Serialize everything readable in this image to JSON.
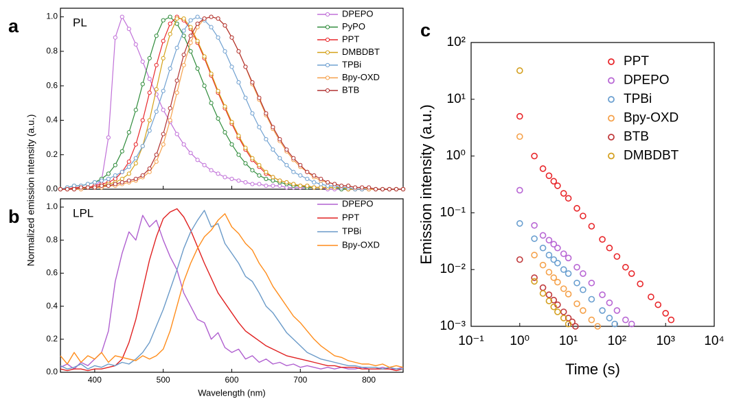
{
  "chart_data": [
    {
      "type": "line",
      "panel_label": "a",
      "annotation": "PL",
      "ylabel": "Normalized emission intensity (a.u.)",
      "markers": true,
      "legend": "upper right",
      "xlim": [
        350,
        850
      ],
      "xticks": [
        400,
        500,
        600,
        700,
        800
      ],
      "ylim": [
        0,
        1.05
      ],
      "yticks": [
        {
          "value": 0,
          "label": "0.0"
        },
        0.2,
        0.4,
        0.6,
        0.8,
        {
          "value": 1,
          "label": "1.0"
        }
      ],
      "x": [
        350,
        360,
        370,
        380,
        390,
        400,
        410,
        420,
        430,
        440,
        450,
        460,
        470,
        480,
        490,
        500,
        510,
        520,
        530,
        540,
        550,
        560,
        570,
        580,
        590,
        600,
        610,
        620,
        630,
        640,
        650,
        660,
        670,
        680,
        690,
        700,
        710,
        720,
        730,
        740,
        750,
        760,
        770,
        780,
        790,
        800,
        810,
        820,
        830,
        840,
        850
      ],
      "series": [
        {
          "name": "DPEPO",
          "color": "#c070d8",
          "values": [
            0,
            0,
            0,
            0,
            0.01,
            0.02,
            0.05,
            0.3,
            0.88,
            1.0,
            0.93,
            0.84,
            0.74,
            0.64,
            0.55,
            0.46,
            0.39,
            0.32,
            0.26,
            0.21,
            0.17,
            0.14,
            0.11,
            0.09,
            0.07,
            0.06,
            0.05,
            0.04,
            0.03,
            0.03,
            0.02,
            0.02,
            0.02,
            0.01,
            0.01,
            0.01,
            0.01,
            0.01,
            0.01,
            0,
            0,
            0,
            0,
            0,
            0,
            0,
            0,
            0,
            0,
            0,
            0
          ]
        },
        {
          "name": "PyPO",
          "color": "#2e8b3a",
          "values": [
            0,
            0.01,
            0.02,
            0.02,
            0.03,
            0.04,
            0.06,
            0.09,
            0.14,
            0.22,
            0.33,
            0.46,
            0.61,
            0.76,
            0.89,
            0.98,
            1.0,
            0.96,
            0.89,
            0.8,
            0.7,
            0.6,
            0.5,
            0.41,
            0.33,
            0.26,
            0.2,
            0.15,
            0.11,
            0.08,
            0.06,
            0.05,
            0.04,
            0.03,
            0.02,
            0.02,
            0.01,
            0.01,
            0.01,
            0.01,
            0.01,
            0,
            0,
            0,
            0,
            0,
            0,
            0,
            0,
            0,
            0
          ]
        },
        {
          "name": "PPT",
          "color": "#e8262a",
          "values": [
            0,
            0,
            0.01,
            0.01,
            0.01,
            0.02,
            0.03,
            0.04,
            0.06,
            0.1,
            0.16,
            0.26,
            0.4,
            0.56,
            0.72,
            0.86,
            0.96,
            1.0,
            0.98,
            0.93,
            0.85,
            0.76,
            0.66,
            0.56,
            0.47,
            0.38,
            0.3,
            0.23,
            0.17,
            0.13,
            0.09,
            0.07,
            0.05,
            0.04,
            0.03,
            0.02,
            0.02,
            0.01,
            0.01,
            0.01,
            0.01,
            0.01,
            0,
            0,
            0,
            0,
            0,
            0,
            0,
            0,
            0
          ]
        },
        {
          "name": "DMBDBT",
          "color": "#d4a017",
          "values": [
            0,
            0,
            0,
            0.01,
            0.01,
            0.01,
            0.02,
            0.03,
            0.04,
            0.06,
            0.09,
            0.15,
            0.25,
            0.4,
            0.58,
            0.76,
            0.9,
            0.99,
            0.99,
            0.94,
            0.86,
            0.77,
            0.67,
            0.57,
            0.48,
            0.39,
            0.31,
            0.24,
            0.18,
            0.14,
            0.1,
            0.07,
            0.05,
            0.04,
            0.03,
            0.02,
            0.02,
            0.01,
            0.01,
            0.01,
            0.01,
            0.01,
            0,
            0,
            0,
            0,
            0,
            0,
            0,
            0,
            0
          ]
        },
        {
          "name": "TPBi",
          "color": "#6fa0d0",
          "values": [
            0,
            0.01,
            0.02,
            0.02,
            0.03,
            0.04,
            0.05,
            0.06,
            0.08,
            0.1,
            0.13,
            0.18,
            0.25,
            0.34,
            0.45,
            0.57,
            0.7,
            0.82,
            0.92,
            0.98,
            1.0,
            0.98,
            0.94,
            0.88,
            0.8,
            0.71,
            0.62,
            0.53,
            0.44,
            0.36,
            0.29,
            0.23,
            0.18,
            0.14,
            0.1,
            0.08,
            0.06,
            0.04,
            0.03,
            0.02,
            0.02,
            0.01,
            0.01,
            0,
            0,
            0,
            0,
            0,
            0,
            0,
            0
          ]
        },
        {
          "name": "Bpy-OXD",
          "color": "#f5a04a",
          "values": [
            0,
            0,
            0,
            0,
            0.01,
            0.01,
            0.01,
            0.02,
            0.02,
            0.03,
            0.04,
            0.05,
            0.07,
            0.1,
            0.16,
            0.26,
            0.4,
            0.56,
            0.72,
            0.85,
            0.94,
            0.99,
            1.0,
            0.99,
            0.95,
            0.88,
            0.8,
            0.71,
            0.61,
            0.52,
            0.43,
            0.35,
            0.28,
            0.22,
            0.17,
            0.13,
            0.1,
            0.07,
            0.05,
            0.04,
            0.03,
            0.02,
            0.02,
            0.01,
            0.01,
            0,
            0,
            0,
            0,
            0,
            0
          ]
        },
        {
          "name": "BTB",
          "color": "#b03030",
          "values": [
            0,
            0,
            0,
            0.01,
            0.01,
            0.01,
            0.02,
            0.02,
            0.03,
            0.04,
            0.05,
            0.06,
            0.08,
            0.12,
            0.2,
            0.32,
            0.47,
            0.63,
            0.78,
            0.89,
            0.96,
            0.99,
            1.0,
            0.99,
            0.95,
            0.88,
            0.8,
            0.71,
            0.62,
            0.53,
            0.44,
            0.36,
            0.29,
            0.23,
            0.18,
            0.14,
            0.1,
            0.08,
            0.06,
            0.04,
            0.03,
            0.02,
            0.02,
            0.01,
            0.01,
            0.01,
            0,
            0,
            0,
            0,
            0
          ]
        }
      ]
    },
    {
      "type": "line",
      "panel_label": "b",
      "annotation": "LPL",
      "xlabel": "Wavelength (nm)",
      "markers": false,
      "legend": "upper right",
      "xlim": [
        350,
        850
      ],
      "xticks": [
        400,
        500,
        600,
        700,
        800
      ],
      "ylim": [
        0,
        1.05
      ],
      "yticks": [
        {
          "value": 0,
          "label": "0.0"
        },
        0.2,
        0.4,
        0.6,
        0.8,
        {
          "value": 1,
          "label": "1.0"
        }
      ],
      "x": [
        350,
        360,
        370,
        380,
        390,
        400,
        410,
        420,
        430,
        440,
        450,
        460,
        470,
        480,
        490,
        500,
        510,
        520,
        530,
        540,
        550,
        560,
        570,
        580,
        590,
        600,
        610,
        620,
        630,
        640,
        650,
        660,
        670,
        680,
        690,
        700,
        710,
        720,
        730,
        740,
        750,
        760,
        770,
        780,
        790,
        800,
        810,
        820,
        830,
        840,
        850
      ],
      "series": [
        {
          "name": "DPEPO",
          "color": "#b060d0",
          "values": [
            0.03,
            0.05,
            0.02,
            0.06,
            0.04,
            0.08,
            0.12,
            0.25,
            0.55,
            0.72,
            0.85,
            0.8,
            0.95,
            0.88,
            0.92,
            0.8,
            0.7,
            0.62,
            0.48,
            0.4,
            0.32,
            0.3,
            0.2,
            0.24,
            0.15,
            0.12,
            0.14,
            0.08,
            0.1,
            0.06,
            0.08,
            0.05,
            0.06,
            0.04,
            0.05,
            0.03,
            0.04,
            0.03,
            0.02,
            0.03,
            0.02,
            0.03,
            0.02,
            0.02,
            0.03,
            0.02,
            0.02,
            0.03,
            0.02,
            0.02,
            0.03
          ]
        },
        {
          "name": "PPT",
          "color": "#e02020",
          "values": [
            0.02,
            0.01,
            0.02,
            0.02,
            0.01,
            0.02,
            0.02,
            0.03,
            0.04,
            0.08,
            0.18,
            0.32,
            0.5,
            0.68,
            0.82,
            0.93,
            0.97,
            0.99,
            0.94,
            0.86,
            0.76,
            0.66,
            0.57,
            0.48,
            0.42,
            0.36,
            0.3,
            0.25,
            0.22,
            0.19,
            0.16,
            0.14,
            0.12,
            0.1,
            0.09,
            0.08,
            0.07,
            0.06,
            0.05,
            0.04,
            0.04,
            0.03,
            0.03,
            0.03,
            0.02,
            0.02,
            0.02,
            0.02,
            0.02,
            0.01,
            0.02
          ]
        },
        {
          "name": "TPBi",
          "color": "#6a9ac8",
          "values": [
            0.04,
            0.02,
            0.03,
            0.05,
            0.02,
            0.04,
            0.03,
            0.05,
            0.04,
            0.06,
            0.05,
            0.08,
            0.12,
            0.18,
            0.28,
            0.38,
            0.5,
            0.62,
            0.75,
            0.85,
            0.92,
            0.98,
            0.88,
            0.9,
            0.78,
            0.72,
            0.66,
            0.58,
            0.55,
            0.48,
            0.4,
            0.36,
            0.3,
            0.24,
            0.2,
            0.16,
            0.12,
            0.1,
            0.08,
            0.07,
            0.06,
            0.05,
            0.04,
            0.04,
            0.03,
            0.03,
            0.03,
            0.02,
            0.03,
            0.02,
            0.02
          ]
        },
        {
          "name": "Bpy-OXD",
          "color": "#ff8c1a",
          "values": [
            0.1,
            0.05,
            0.12,
            0.06,
            0.1,
            0.08,
            0.12,
            0.06,
            0.1,
            0.09,
            0.08,
            0.07,
            0.1,
            0.08,
            0.1,
            0.14,
            0.25,
            0.4,
            0.55,
            0.66,
            0.75,
            0.82,
            0.86,
            0.92,
            0.96,
            0.88,
            0.84,
            0.78,
            0.74,
            0.66,
            0.6,
            0.52,
            0.46,
            0.4,
            0.34,
            0.3,
            0.25,
            0.2,
            0.16,
            0.13,
            0.1,
            0.09,
            0.07,
            0.06,
            0.05,
            0.05,
            0.04,
            0.05,
            0.03,
            0.04,
            0.03
          ]
        }
      ]
    },
    {
      "type": "scatter",
      "panel_label": "c",
      "xlabel": "Time (s)",
      "ylabel": "Emission intensity (a.u.)",
      "xscale": "log",
      "yscale": "log",
      "legend": "upper right",
      "xlim": [
        0.1,
        10000
      ],
      "xticks": [
        {
          "value": 0.1,
          "label": "10⁻¹"
        },
        {
          "value": 1,
          "label": "10⁰"
        },
        {
          "value": 10,
          "label": "10¹"
        },
        {
          "value": 100,
          "label": "10²"
        },
        {
          "value": 1000,
          "label": "10³"
        },
        {
          "value": 10000,
          "label": "10⁴"
        }
      ],
      "ylim": [
        0.001,
        100
      ],
      "yticks": [
        {
          "value": 0.001,
          "label": "10⁻³"
        },
        {
          "value": 0.01,
          "label": "10⁻²"
        },
        {
          "value": 0.1,
          "label": "10⁻¹"
        },
        {
          "value": 1,
          "label": "10⁰"
        },
        {
          "value": 10,
          "label": "10¹"
        },
        {
          "value": 100,
          "label": "10²"
        }
      ],
      "series": [
        {
          "name": "PPT",
          "color": "#e8262a",
          "x": [
            1,
            2,
            3,
            4,
            5,
            6,
            8,
            10,
            15,
            20,
            30,
            50,
            70,
            100,
            150,
            200,
            300,
            500,
            700,
            1000,
            1300
          ],
          "values": [
            5.0,
            1.0,
            0.6,
            0.45,
            0.36,
            0.3,
            0.22,
            0.18,
            0.12,
            0.088,
            0.058,
            0.034,
            0.024,
            0.017,
            0.011,
            0.0085,
            0.0056,
            0.0033,
            0.0024,
            0.0017,
            0.0013
          ]
        },
        {
          "name": "DPEPO",
          "color": "#b866d4",
          "x": [
            1,
            2,
            3,
            4,
            5,
            6,
            8,
            10,
            15,
            20,
            30,
            50,
            70,
            100,
            150,
            200
          ],
          "values": [
            0.25,
            0.06,
            0.04,
            0.033,
            0.028,
            0.024,
            0.019,
            0.016,
            0.011,
            0.0085,
            0.0058,
            0.0036,
            0.0026,
            0.0019,
            0.0013,
            0.0011
          ]
        },
        {
          "name": "TPBi",
          "color": "#6a9fd0",
          "x": [
            1,
            2,
            3,
            4,
            5,
            6,
            8,
            10,
            15,
            20,
            30,
            50,
            70,
            90
          ],
          "values": [
            0.065,
            0.035,
            0.024,
            0.018,
            0.015,
            0.013,
            0.01,
            0.0085,
            0.0058,
            0.0044,
            0.003,
            0.0019,
            0.0014,
            0.0011
          ]
        },
        {
          "name": "Bpy-OXD",
          "color": "#f5a14a",
          "x": [
            1,
            2,
            3,
            4,
            5,
            6,
            8,
            10,
            15,
            20,
            30,
            40
          ],
          "values": [
            2.2,
            0.018,
            0.012,
            0.009,
            0.0072,
            0.006,
            0.0046,
            0.0037,
            0.0025,
            0.0019,
            0.0013,
            0.001
          ]
        },
        {
          "name": "BTB",
          "color": "#c0393b",
          "x": [
            1,
            2,
            3,
            4,
            5,
            6,
            8,
            10,
            12,
            14
          ],
          "values": [
            0.015,
            0.0072,
            0.0048,
            0.0036,
            0.0029,
            0.0024,
            0.0018,
            0.0014,
            0.0012,
            0.001
          ]
        },
        {
          "name": "DMBDBT",
          "color": "#d4a020",
          "x": [
            1,
            2,
            3,
            4,
            5,
            6,
            8,
            10
          ],
          "values": [
            32,
            0.0062,
            0.0038,
            0.0028,
            0.0022,
            0.0018,
            0.0014,
            0.0011
          ]
        }
      ]
    }
  ]
}
